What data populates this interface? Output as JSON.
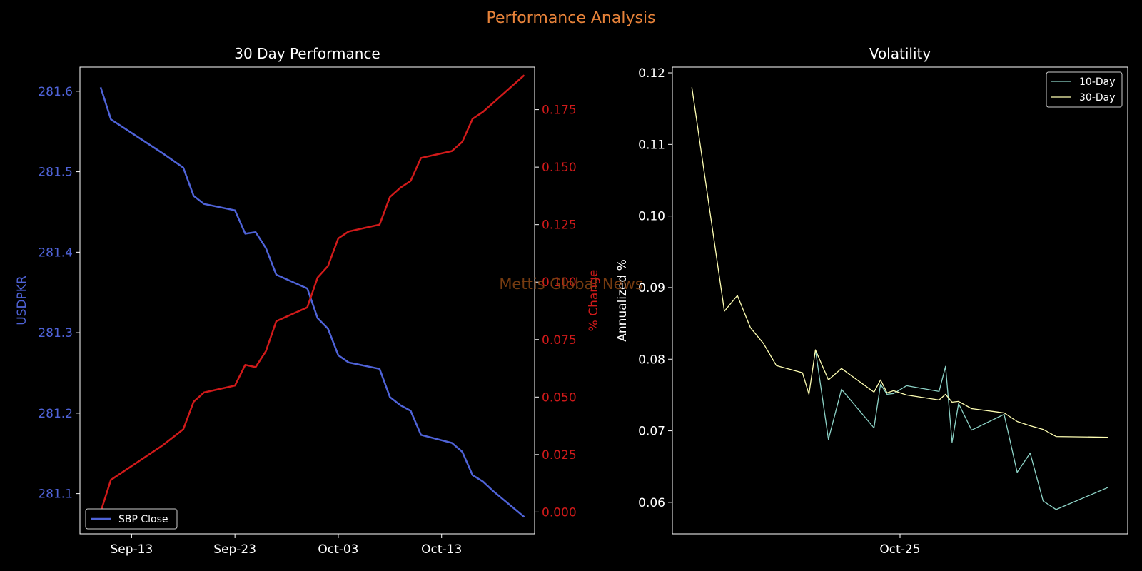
{
  "figure": {
    "title": "Performance Analysis",
    "watermark": "Mettis Global News",
    "colors": {
      "background": "#000000",
      "title": "#E8833A",
      "watermark": "#8B4513",
      "axis": "#FFFFFF",
      "usd": "#4F63D8",
      "pct": "#D11A1A",
      "vol10": "#8DD3C7",
      "vol30": "#FFFFB3"
    }
  },
  "chart_data": [
    {
      "type": "line",
      "title": "30 Day Performance",
      "x_type": "date",
      "xticks": [
        "Sep-13",
        "Sep-23",
        "Oct-03",
        "Oct-13"
      ],
      "xtick_dates": [
        "2024-09-13",
        "2024-09-23",
        "2024-10-03",
        "2024-10-13"
      ],
      "xlim": [
        "2024-09-08",
        "2024-10-22"
      ],
      "left_axis": {
        "label": "USDPKR",
        "ylim": [
          281.05,
          281.63
        ],
        "ticks": [
          "281.1",
          "281.2",
          "281.3",
          "281.4",
          "281.5",
          "281.6"
        ]
      },
      "right_axis": {
        "label": "% Change",
        "ylim": [
          -0.0095,
          0.1935
        ],
        "ticks": [
          "0.000",
          "0.025",
          "0.050",
          "0.075",
          "0.100",
          "0.125",
          "0.150",
          "0.175"
        ]
      },
      "legend": {
        "placement": "lower-left",
        "entries": [
          "SBP Close"
        ]
      },
      "grid": false,
      "series": [
        {
          "name": "SBP Close",
          "axis": "left",
          "points": [
            [
              "2024-09-10",
              281.605
            ],
            [
              "2024-09-11",
              281.565
            ],
            [
              "2024-09-16",
              281.523
            ],
            [
              "2024-09-18",
              281.505
            ],
            [
              "2024-09-19",
              281.47
            ],
            [
              "2024-09-20",
              281.46
            ],
            [
              "2024-09-23",
              281.452
            ],
            [
              "2024-09-24",
              281.423
            ],
            [
              "2024-09-25",
              281.425
            ],
            [
              "2024-09-26",
              281.405
            ],
            [
              "2024-09-27",
              281.372
            ],
            [
              "2024-09-30",
              281.355
            ],
            [
              "2024-10-01",
              281.318
            ],
            [
              "2024-10-02",
              281.305
            ],
            [
              "2024-10-03",
              281.272
            ],
            [
              "2024-10-04",
              281.263
            ],
            [
              "2024-10-07",
              281.255
            ],
            [
              "2024-10-08",
              281.22
            ],
            [
              "2024-10-09",
              281.21
            ],
            [
              "2024-10-10",
              281.203
            ],
            [
              "2024-10-11",
              281.173
            ],
            [
              "2024-10-14",
              281.163
            ],
            [
              "2024-10-15",
              281.152
            ],
            [
              "2024-10-16",
              281.123
            ],
            [
              "2024-10-17",
              281.115
            ],
            [
              "2024-10-18",
              281.103
            ],
            [
              "2024-10-21",
              281.071
            ]
          ]
        },
        {
          "name": "% Change",
          "axis": "right",
          "points": [
            [
              "2024-09-10",
              0.0
            ],
            [
              "2024-09-11",
              0.014
            ],
            [
              "2024-09-16",
              0.029
            ],
            [
              "2024-09-18",
              0.036
            ],
            [
              "2024-09-19",
              0.048
            ],
            [
              "2024-09-20",
              0.052
            ],
            [
              "2024-09-23",
              0.055
            ],
            [
              "2024-09-24",
              0.064
            ],
            [
              "2024-09-25",
              0.063
            ],
            [
              "2024-09-26",
              0.07
            ],
            [
              "2024-09-27",
              0.083
            ],
            [
              "2024-09-30",
              0.089
            ],
            [
              "2024-10-01",
              0.102
            ],
            [
              "2024-10-02",
              0.107
            ],
            [
              "2024-10-03",
              0.119
            ],
            [
              "2024-10-04",
              0.122
            ],
            [
              "2024-10-07",
              0.125
            ],
            [
              "2024-10-08",
              0.137
            ],
            [
              "2024-10-09",
              0.141
            ],
            [
              "2024-10-10",
              0.144
            ],
            [
              "2024-10-11",
              0.154
            ],
            [
              "2024-10-14",
              0.157
            ],
            [
              "2024-10-15",
              0.161
            ],
            [
              "2024-10-16",
              0.171
            ],
            [
              "2024-10-17",
              0.174
            ],
            [
              "2024-10-18",
              0.178
            ],
            [
              "2024-10-21",
              0.19
            ]
          ]
        }
      ]
    },
    {
      "type": "line",
      "title": "Volatility",
      "x_type": "date",
      "xticks": [
        "Oct-25"
      ],
      "xtick_dates": [
        "2024-10-25"
      ],
      "xlim": [
        "2024-09-20",
        "2024-11-29"
      ],
      "ylabel": "Annualized %",
      "ylim": [
        0.0556,
        0.1208
      ],
      "yticks": [
        "0.06",
        "0.07",
        "0.08",
        "0.09",
        "0.10",
        "0.11",
        "0.12"
      ],
      "legend": {
        "placement": "upper-right",
        "entries": [
          "10-Day",
          "30-Day"
        ]
      },
      "grid": false,
      "series": [
        {
          "name": "10-Day",
          "points": [
            [
              "2024-10-12",
              0.0813
            ],
            [
              "2024-10-14",
              0.0688
            ],
            [
              "2024-10-16",
              0.0758
            ],
            [
              "2024-10-21",
              0.0704
            ],
            [
              "2024-10-22",
              0.0765
            ],
            [
              "2024-10-23",
              0.0751
            ],
            [
              "2024-10-24",
              0.0752
            ],
            [
              "2024-10-26",
              0.0763
            ],
            [
              "2024-10-31",
              0.0755
            ],
            [
              "2024-11-01",
              0.079
            ],
            [
              "2024-11-02",
              0.0684
            ],
            [
              "2024-11-03",
              0.0738
            ],
            [
              "2024-11-05",
              0.0701
            ],
            [
              "2024-11-10",
              0.0723
            ],
            [
              "2024-11-12",
              0.0642
            ],
            [
              "2024-11-14",
              0.0669
            ],
            [
              "2024-11-16",
              0.0602
            ],
            [
              "2024-11-18",
              0.059
            ],
            [
              "2024-11-26",
              0.0621
            ]
          ]
        },
        {
          "name": "30-Day",
          "points": [
            [
              "2024-09-23",
              0.118
            ],
            [
              "2024-09-28",
              0.0867
            ],
            [
              "2024-09-30",
              0.0889
            ],
            [
              "2024-10-02",
              0.0844
            ],
            [
              "2024-10-04",
              0.0822
            ],
            [
              "2024-10-06",
              0.0791
            ],
            [
              "2024-10-10",
              0.0781
            ],
            [
              "2024-10-11",
              0.0751
            ],
            [
              "2024-10-12",
              0.0813
            ],
            [
              "2024-10-14",
              0.0771
            ],
            [
              "2024-10-16",
              0.0787
            ],
            [
              "2024-10-21",
              0.0754
            ],
            [
              "2024-10-22",
              0.0771
            ],
            [
              "2024-10-23",
              0.0753
            ],
            [
              "2024-10-24",
              0.0756
            ],
            [
              "2024-10-26",
              0.075
            ],
            [
              "2024-10-31",
              0.0743
            ],
            [
              "2024-11-01",
              0.0751
            ],
            [
              "2024-11-02",
              0.074
            ],
            [
              "2024-11-03",
              0.0741
            ],
            [
              "2024-11-05",
              0.0731
            ],
            [
              "2024-11-10",
              0.0725
            ],
            [
              "2024-11-12",
              0.0713
            ],
            [
              "2024-11-14",
              0.0707
            ],
            [
              "2024-11-16",
              0.0702
            ],
            [
              "2024-11-18",
              0.0692
            ],
            [
              "2024-11-26",
              0.0691
            ]
          ]
        }
      ]
    }
  ]
}
